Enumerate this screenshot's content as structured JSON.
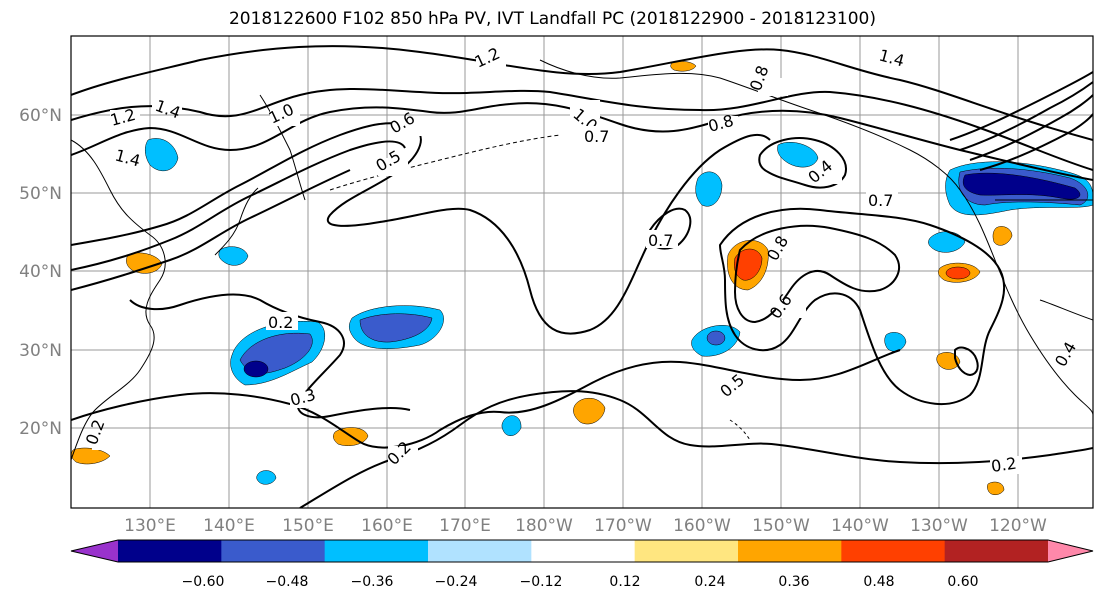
{
  "title": "2018122600 F102 850 hPa PV, IVT Landfall PC (2018122900 - 2018123100)",
  "map": {
    "lon_labels": [
      "130°E",
      "140°E",
      "150°E",
      "160°E",
      "170°E",
      "180°W",
      "170°W",
      "160°W",
      "150°W",
      "140°W",
      "130°W",
      "120°W"
    ],
    "lat_labels": [
      "60°N",
      "50°N",
      "40°N",
      "30°N",
      "20°N"
    ],
    "contour_labels": [
      "1.2",
      "1.4",
      "1.4",
      "1.2",
      "1.0",
      "1.0",
      "0.7",
      "0.6",
      "0.5",
      "0.8",
      "1.4",
      "0.8",
      "0.7",
      "0.7",
      "0.8",
      "0.6",
      "0.4",
      "0.2",
      "0.3",
      "0.2",
      "0.5",
      "0.2",
      "0.2",
      "0.4"
    ]
  },
  "colorbar": {
    "colors": [
      "#9932cc",
      "#00008b",
      "#3a5bcc",
      "#00bfff",
      "#b0e2ff",
      "#ffffff",
      "#ffe680",
      "#ffa500",
      "#ff4000",
      "#b22222",
      "#ff88aa"
    ],
    "tick_labels": [
      "−0.60",
      "−0.48",
      "−0.36",
      "−0.24",
      "−0.12",
      "0.12",
      "0.24",
      "0.36",
      "0.48",
      "0.60"
    ]
  }
}
